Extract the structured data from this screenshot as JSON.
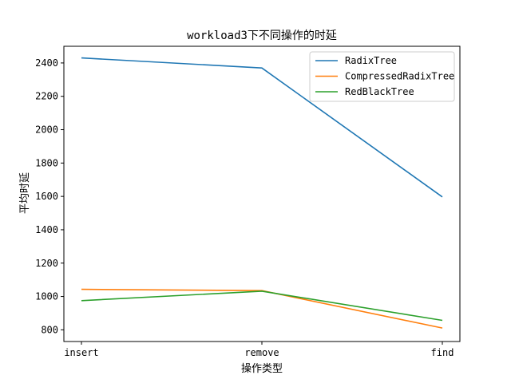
{
  "chart_data": {
    "type": "line",
    "title": "workload3下不同操作的时延",
    "xlabel": "操作类型",
    "ylabel": "平均时延",
    "categories": [
      "insert",
      "remove",
      "find"
    ],
    "ylim": [
      730,
      2500
    ],
    "yticks": [
      800,
      1000,
      1200,
      1400,
      1600,
      1800,
      2000,
      2200,
      2400
    ],
    "grid": false,
    "legend_position": "top-right",
    "series": [
      {
        "name": "RadixTree",
        "color": "#1f77b4",
        "values": [
          2430,
          2370,
          1597
        ]
      },
      {
        "name": "CompressedRadixTree",
        "color": "#ff7f0e",
        "values": [
          1043,
          1035,
          811
        ]
      },
      {
        "name": "RedBlackTree",
        "color": "#2ca02c",
        "values": [
          975,
          1032,
          857
        ]
      }
    ]
  }
}
